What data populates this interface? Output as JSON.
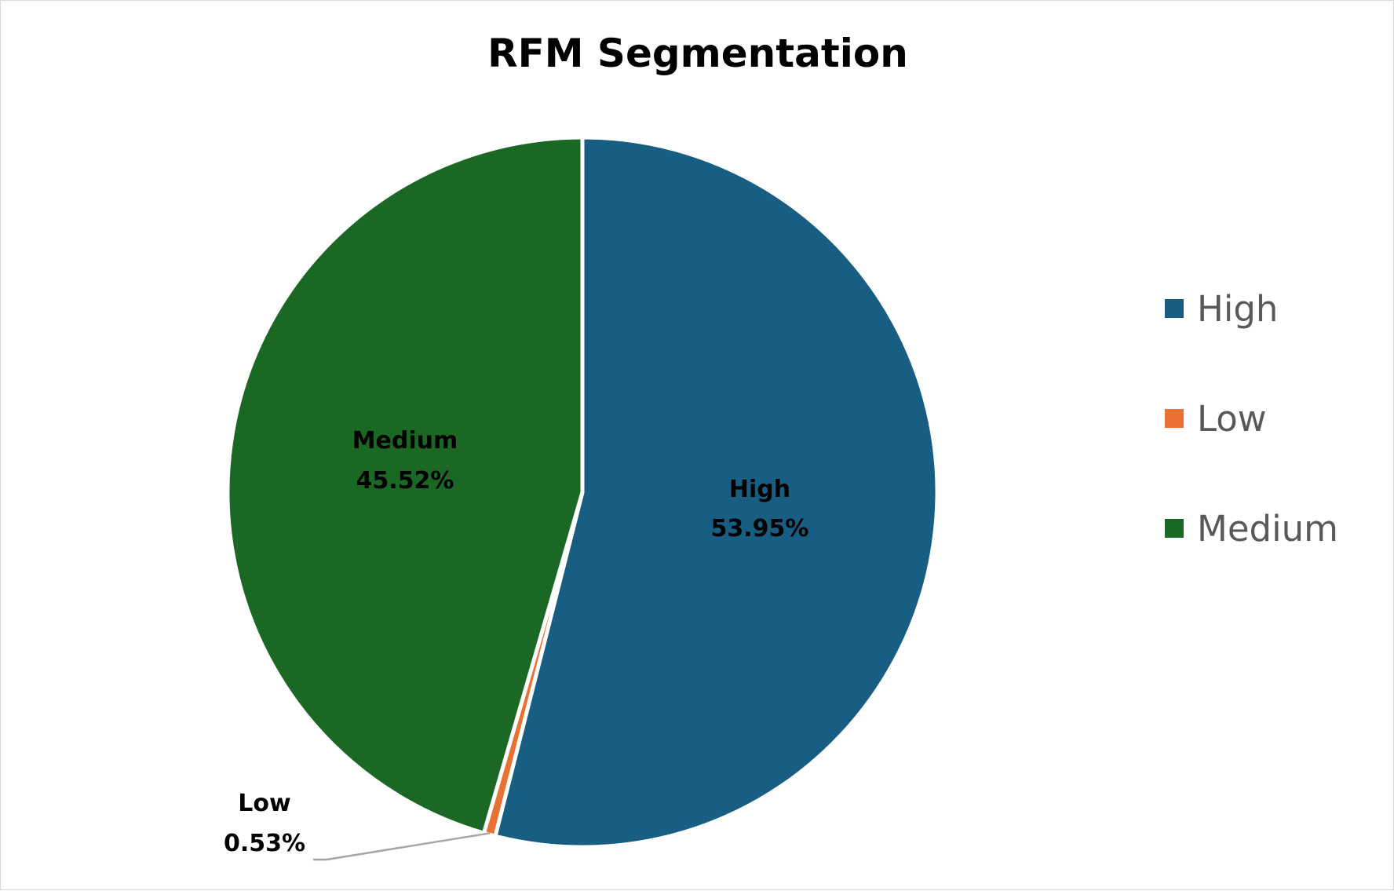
{
  "chart_data": {
    "type": "pie",
    "title": "RFM Segmentation",
    "categories": [
      "High",
      "Low",
      "Medium"
    ],
    "values": [
      53.95,
      0.53,
      45.52
    ],
    "value_labels": [
      "53.95%",
      "0.53%",
      "45.52%"
    ],
    "colors": [
      "#175e82",
      "#e97132",
      "#1a6824"
    ],
    "legend": {
      "position": "right",
      "entries": [
        "High",
        "Low",
        "Medium"
      ]
    }
  }
}
